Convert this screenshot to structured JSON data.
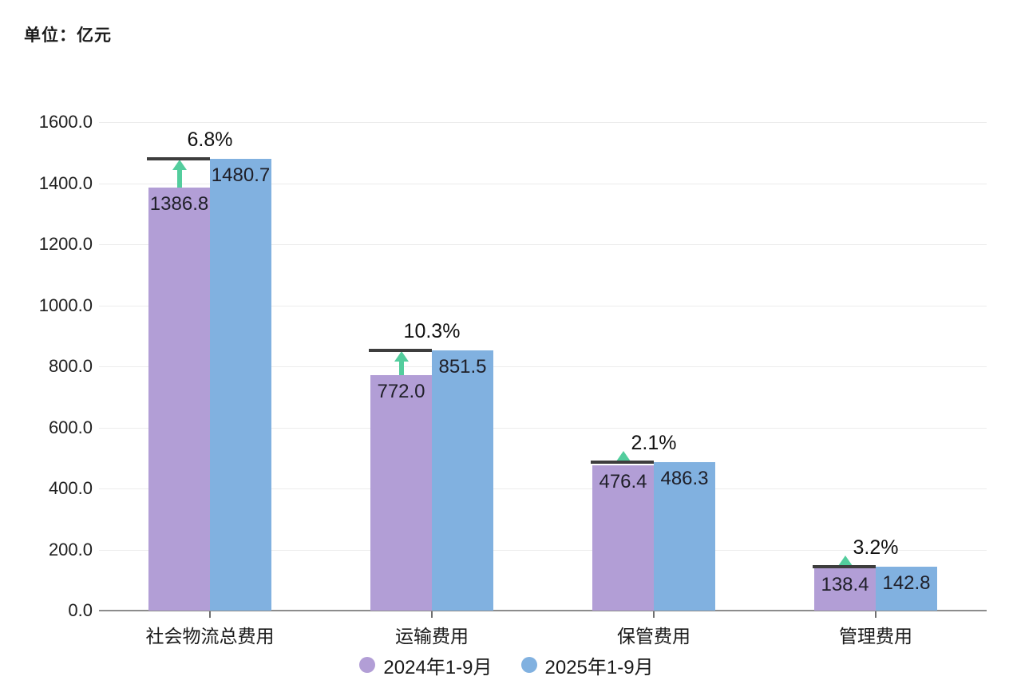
{
  "unit_label": "单位：亿元",
  "chart_data": {
    "type": "bar",
    "title": "",
    "xlabel": "",
    "ylabel": "单位：亿元",
    "categories": [
      "社会物流总费用",
      "运输费用",
      "保管费用",
      "管理费用"
    ],
    "series": [
      {
        "name": "2024年1-9月",
        "color": "#b29ed6",
        "values": [
          1386.8,
          772.0,
          476.4,
          138.4
        ]
      },
      {
        "name": "2025年1-9月",
        "color": "#81b1e0",
        "values": [
          1480.7,
          851.5,
          486.3,
          142.8
        ]
      }
    ],
    "growth_labels": [
      "6.8%",
      "10.3%",
      "2.1%",
      "3.2%"
    ],
    "ylim": [
      0,
      1600
    ],
    "ytick_labels": [
      "0.0",
      "200.0",
      "400.0",
      "600.0",
      "800.0",
      "1000.0",
      "1200.0",
      "1400.0",
      "1600.0"
    ],
    "grid": true,
    "legend_position": "bottom",
    "colors": {
      "arrow": "#53cd9d",
      "marker_line": "#3d3d3d",
      "gridline": "#ececec",
      "axis_line": "#8c8c8c",
      "text": "#1a1a1a"
    }
  },
  "legend": {
    "items": [
      {
        "label": "2024年1-9月",
        "color": "#b29ed6"
      },
      {
        "label": "2025年1-9月",
        "color": "#81b1e0"
      }
    ]
  }
}
